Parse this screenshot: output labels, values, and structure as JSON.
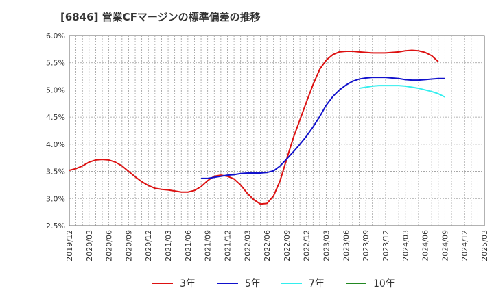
{
  "chart_data": {
    "type": "line",
    "title": "[6846]  営業CFマージンの標準偏差の推移",
    "xlabel": "",
    "ylabel": "",
    "ylim": [
      2.5,
      6.0
    ],
    "y_ticks": [
      "2.5%",
      "3.0%",
      "3.5%",
      "4.0%",
      "4.5%",
      "5.0%",
      "5.5%",
      "6.0%"
    ],
    "y_tick_values": [
      2.5,
      3.0,
      3.5,
      4.0,
      4.5,
      5.0,
      5.5,
      6.0
    ],
    "x_ticks": [
      "2019/12",
      "2020/03",
      "2020/06",
      "2020/09",
      "2020/12",
      "2021/03",
      "2021/06",
      "2021/09",
      "2021/12",
      "2022/03",
      "2022/06",
      "2022/09",
      "2022/12",
      "2023/03",
      "2023/06",
      "2023/09",
      "2023/12",
      "2024/03",
      "2024/06",
      "2024/09",
      "2024/12",
      "2025/03"
    ],
    "x_tick_index": [
      0,
      3,
      6,
      9,
      12,
      15,
      18,
      21,
      24,
      27,
      30,
      33,
      36,
      39,
      42,
      45,
      48,
      51,
      54,
      57,
      60,
      63
    ],
    "x_range": [
      0,
      63
    ],
    "grid": true,
    "legend_position": "bottom",
    "series": [
      {
        "name": "3年",
        "color": "#dd1111",
        "start_index": 0,
        "values": [
          3.52,
          3.55,
          3.6,
          3.67,
          3.71,
          3.72,
          3.71,
          3.67,
          3.6,
          3.5,
          3.4,
          3.31,
          3.24,
          3.19,
          3.17,
          3.16,
          3.14,
          3.12,
          3.12,
          3.15,
          3.22,
          3.33,
          3.41,
          3.43,
          3.41,
          3.36,
          3.25,
          3.1,
          2.98,
          2.9,
          2.91,
          3.05,
          3.33,
          3.73,
          4.12,
          4.45,
          4.78,
          5.1,
          5.38,
          5.55,
          5.65,
          5.7,
          5.71,
          5.71,
          5.7,
          5.69,
          5.68,
          5.68,
          5.68,
          5.69,
          5.7,
          5.72,
          5.73,
          5.72,
          5.69,
          5.63,
          5.52
        ]
      },
      {
        "name": "5年",
        "color": "#1111cc",
        "start_index": 20,
        "values": [
          3.37,
          3.37,
          3.39,
          3.41,
          3.43,
          3.44,
          3.46,
          3.47,
          3.47,
          3.47,
          3.48,
          3.51,
          3.6,
          3.73,
          3.86,
          4.0,
          4.15,
          4.32,
          4.51,
          4.72,
          4.88,
          5.0,
          5.09,
          5.16,
          5.2,
          5.22,
          5.23,
          5.23,
          5.23,
          5.22,
          5.21,
          5.19,
          5.18,
          5.18,
          5.19,
          5.2,
          5.21,
          5.21
        ]
      },
      {
        "name": "7年",
        "color": "#33eeee",
        "start_index": 44,
        "values": [
          5.03,
          5.05,
          5.07,
          5.08,
          5.08,
          5.08,
          5.08,
          5.07,
          5.05,
          5.03,
          5.0,
          4.97,
          4.93,
          4.87
        ]
      },
      {
        "name": "10年",
        "color": "#228822",
        "start_index": 0,
        "values": []
      }
    ]
  }
}
